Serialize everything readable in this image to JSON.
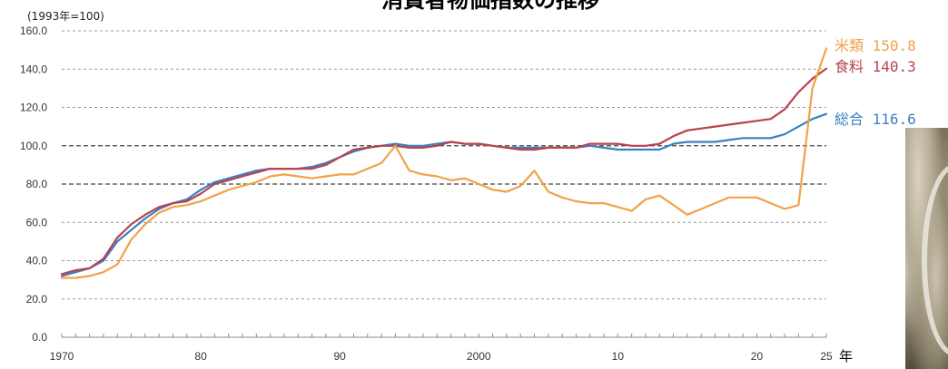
{
  "chart_data": {
    "type": "line",
    "title": "消費者物価指数の推移",
    "unit_note": "(1993年=100)",
    "x_unit": "年",
    "xlim": [
      1970,
      2025
    ],
    "ylim": [
      0,
      160
    ],
    "y_ticks": [
      "0.0",
      "20.0",
      "40.0",
      "60.0",
      "80.0",
      "100.0",
      "120.0",
      "140.0",
      "160.0"
    ],
    "x_tick_labels": [
      {
        "x": 1970,
        "label": "1970"
      },
      {
        "x": 1980,
        "label": "80"
      },
      {
        "x": 1990,
        "label": "90"
      },
      {
        "x": 2000,
        "label": "2000"
      },
      {
        "x": 2010,
        "label": "10"
      },
      {
        "x": 2020,
        "label": "20"
      },
      {
        "x": 2025,
        "label": "25"
      }
    ],
    "dashed_gridlines": [
      20,
      40,
      60,
      80,
      100,
      120,
      140,
      160
    ],
    "series": [
      {
        "name": "総合",
        "color": "#3b7fc4",
        "end_label": "総合 116.6",
        "x": [
          1970,
          1971,
          1972,
          1973,
          1974,
          1975,
          1976,
          1977,
          1978,
          1979,
          1980,
          1981,
          1982,
          1983,
          1984,
          1985,
          1986,
          1987,
          1988,
          1989,
          1990,
          1991,
          1992,
          1993,
          1994,
          1995,
          1996,
          1997,
          1998,
          1999,
          2000,
          2001,
          2002,
          2003,
          2004,
          2005,
          2006,
          2007,
          2008,
          2009,
          2010,
          2011,
          2012,
          2013,
          2014,
          2015,
          2016,
          2017,
          2018,
          2019,
          2020,
          2021,
          2022,
          2023,
          2024,
          2025
        ],
        "values": [
          32,
          34,
          36,
          40,
          50,
          56,
          62,
          67,
          70,
          72,
          77,
          81,
          83,
          85,
          87,
          88,
          88,
          88,
          89,
          91,
          94,
          97,
          99,
          100,
          101,
          100,
          100,
          101,
          102,
          101,
          101,
          100,
          99,
          99,
          99,
          99,
          99,
          99,
          100,
          99,
          98,
          98,
          98,
          98,
          101,
          102,
          102,
          102,
          103,
          104,
          104,
          104,
          106,
          110,
          114,
          116.6
        ]
      },
      {
        "name": "食料",
        "color": "#b8434c",
        "end_label": "食料 140.3",
        "x": [
          1970,
          1971,
          1972,
          1973,
          1974,
          1975,
          1976,
          1977,
          1978,
          1979,
          1980,
          1981,
          1982,
          1983,
          1984,
          1985,
          1986,
          1987,
          1988,
          1989,
          1990,
          1991,
          1992,
          1993,
          1994,
          1995,
          1996,
          1997,
          1998,
          1999,
          2000,
          2001,
          2002,
          2003,
          2004,
          2005,
          2006,
          2007,
          2008,
          2009,
          2010,
          2011,
          2012,
          2013,
          2014,
          2015,
          2016,
          2017,
          2018,
          2019,
          2020,
          2021,
          2022,
          2023,
          2024,
          2025
        ],
        "values": [
          33,
          35,
          36,
          41,
          52,
          59,
          64,
          68,
          70,
          71,
          75,
          80,
          82,
          84,
          86,
          88,
          88,
          88,
          88,
          90,
          94,
          98,
          99,
          100,
          100,
          99,
          99,
          100,
          102,
          101,
          101,
          100,
          99,
          98,
          98,
          99,
          99,
          99,
          101,
          101,
          101,
          100,
          100,
          101,
          105,
          108,
          109,
          110,
          111,
          112,
          113,
          114,
          119,
          128,
          135,
          140.3
        ]
      },
      {
        "name": "米類",
        "color": "#f0a347",
        "end_label": "米類 150.8",
        "x": [
          1970,
          1971,
          1972,
          1973,
          1974,
          1975,
          1976,
          1977,
          1978,
          1979,
          1980,
          1981,
          1982,
          1983,
          1984,
          1985,
          1986,
          1987,
          1988,
          1989,
          1990,
          1991,
          1992,
          1993,
          1994,
          1995,
          1996,
          1997,
          1998,
          1999,
          2000,
          2001,
          2002,
          2003,
          2004,
          2005,
          2006,
          2007,
          2008,
          2009,
          2010,
          2011,
          2012,
          2013,
          2014,
          2015,
          2016,
          2017,
          2018,
          2019,
          2020,
          2021,
          2022,
          2023,
          2024,
          2025
        ],
        "values": [
          31,
          31,
          32,
          34,
          38,
          51,
          59,
          65,
          68,
          69,
          71,
          74,
          77,
          79,
          81,
          84,
          85,
          84,
          83,
          84,
          85,
          85,
          88,
          91,
          100,
          87,
          85,
          84,
          82,
          83,
          80,
          77,
          76,
          79,
          87,
          76,
          73,
          71,
          70,
          70,
          68,
          66,
          72,
          74,
          69,
          64,
          67,
          70,
          73,
          73,
          73,
          70,
          67,
          69,
          130,
          150.8
        ]
      }
    ]
  }
}
